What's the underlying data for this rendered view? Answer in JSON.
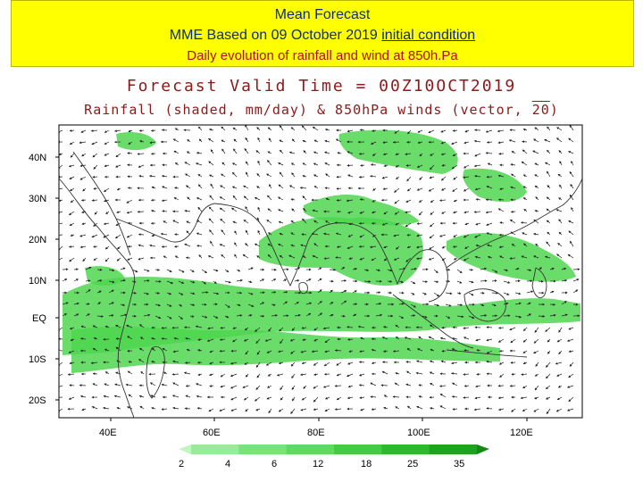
{
  "header": {
    "line1": "Mean  Forecast",
    "line2_prefix": "MME    Based on 09 October 2019 ",
    "line2_link": "initial condition ",
    "line3": "Daily evolution of rainfall and wind at 850h.Pa"
  },
  "plot": {
    "title": "Forecast Valid Time = 00Z10OCT2019",
    "subtitle_prefix": "Rainfall (shaded, mm/day) & 850hPa winds (vector, ",
    "subtitle_ref": "20",
    "subtitle_suffix": ")"
  },
  "map": {
    "lat_labels": [
      "40N",
      "30N",
      "20N",
      "10N",
      "EQ",
      "10S",
      "20S"
    ],
    "lon_labels": [
      "40E",
      "60E",
      "80E",
      "100E",
      "120E"
    ],
    "shade_color": "#4fd64f",
    "coast_color": "#333333"
  },
  "colorbar": {
    "levels": [
      "2",
      "4",
      "6",
      "12",
      "18",
      "25",
      "35"
    ],
    "colors": [
      "#bff5bf",
      "#98ec98",
      "#79e379",
      "#5fd95f",
      "#46c946",
      "#30b730",
      "#1fa21f",
      "#148a14"
    ]
  }
}
